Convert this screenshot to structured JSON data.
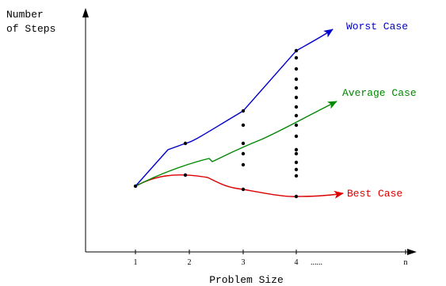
{
  "y_axis_label": {
    "line1": "Number",
    "line2": "of Steps"
  },
  "x_axis_label": "Problem Size",
  "x_ticks": [
    "1",
    "2",
    "3",
    "4",
    "n"
  ],
  "ellipsis": "......",
  "curves": {
    "worst": {
      "label": "Worst Case",
      "color": "#0000cc"
    },
    "average": {
      "label": "Average Case",
      "color": "#008800"
    },
    "best": {
      "label": "Best Case",
      "color": "#dd0000"
    }
  },
  "axis_color": "#000000",
  "dot_color": "#000000"
}
